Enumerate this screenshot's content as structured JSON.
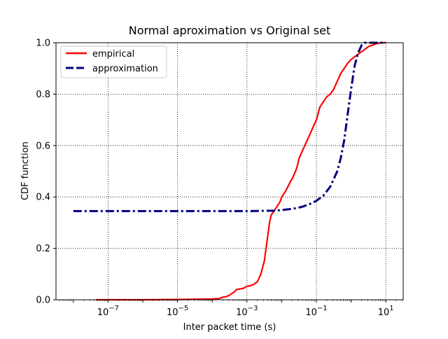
{
  "chart_data": {
    "type": "line",
    "title": "Normal aproximation vs Original set",
    "xlabel": "Inter packet time (s)",
    "ylabel": "CDF function",
    "xscale": "log",
    "xlim_log10": [
      -8.5,
      1.5
    ],
    "ylim": [
      0.0,
      1.0
    ],
    "xticks": [
      {
        "exp": -7,
        "label": "10",
        "sup": "−7"
      },
      {
        "exp": -5,
        "label": "10",
        "sup": "−5"
      },
      {
        "exp": -3,
        "label": "10",
        "sup": "−3"
      },
      {
        "exp": -1,
        "label": "10",
        "sup": "−1"
      },
      {
        "exp": 1,
        "label": "10",
        "sup": "1"
      }
    ],
    "yticks": [
      "0.0",
      "0.2",
      "0.4",
      "0.6",
      "0.8",
      "1.0"
    ],
    "grid": true,
    "legend_position": "top-left",
    "series": [
      {
        "name": "empirical",
        "color": "#ff0000",
        "style": "solid",
        "log10_x": [
          -7.35,
          -6.0,
          -5.0,
          -4.0,
          -3.8,
          -3.7,
          -3.6,
          -3.5,
          -3.35,
          -3.3,
          -3.2,
          -3.1,
          -3.0,
          -2.9,
          -2.8,
          -2.7,
          -2.6,
          -2.5,
          -2.45,
          -2.4,
          -2.35,
          -2.3,
          -2.25,
          -2.2,
          -2.15,
          -2.1,
          -2.05,
          -2.0,
          -1.9,
          -1.8,
          -1.75,
          -1.7,
          -1.6,
          -1.55,
          -1.5,
          -1.4,
          -1.3,
          -1.2,
          -1.1,
          -1.0,
          -0.9,
          -0.8,
          -0.7,
          -0.6,
          -0.5,
          -0.4,
          -0.3,
          -0.2,
          -0.1,
          0.0,
          0.1,
          0.2,
          0.3,
          0.4,
          0.5,
          0.6,
          0.7,
          0.8,
          0.9,
          1.0
        ],
        "y": [
          0.0,
          0.0,
          0.001,
          0.003,
          0.005,
          0.01,
          0.012,
          0.018,
          0.032,
          0.04,
          0.042,
          0.045,
          0.052,
          0.055,
          0.06,
          0.07,
          0.1,
          0.15,
          0.2,
          0.25,
          0.3,
          0.33,
          0.34,
          0.35,
          0.36,
          0.37,
          0.38,
          0.4,
          0.42,
          0.445,
          0.46,
          0.47,
          0.5,
          0.52,
          0.55,
          0.58,
          0.61,
          0.64,
          0.67,
          0.7,
          0.75,
          0.77,
          0.79,
          0.8,
          0.82,
          0.85,
          0.88,
          0.9,
          0.92,
          0.935,
          0.945,
          0.955,
          0.965,
          0.975,
          0.985,
          0.99,
          0.995,
          0.998,
          1.0,
          1.0
        ]
      },
      {
        "name": "approximation",
        "color": "#000080",
        "style": "dashdot",
        "log10_x": [
          -8.0,
          -6.0,
          -4.0,
          -3.0,
          -2.5,
          -2.2,
          -2.0,
          -1.8,
          -1.6,
          -1.4,
          -1.2,
          -1.0,
          -0.8,
          -0.6,
          -0.4,
          -0.3,
          -0.2,
          -0.1,
          0.0,
          0.1,
          0.2,
          0.3,
          0.4,
          0.5,
          0.6,
          0.7,
          0.8,
          1.0
        ],
        "y": [
          0.345,
          0.345,
          0.345,
          0.345,
          0.346,
          0.347,
          0.349,
          0.352,
          0.356,
          0.362,
          0.372,
          0.385,
          0.405,
          0.44,
          0.5,
          0.55,
          0.62,
          0.72,
          0.82,
          0.91,
          0.96,
          0.99,
          1.0,
          1.0,
          1.0,
          1.0,
          1.0,
          1.0
        ]
      }
    ]
  }
}
